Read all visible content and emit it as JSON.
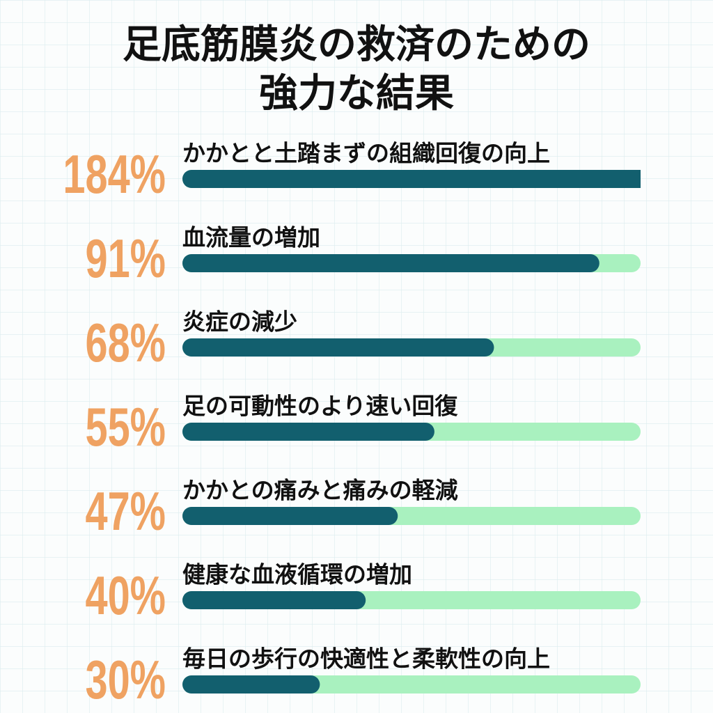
{
  "chart_data": {
    "type": "bar",
    "title": [
      "足底筋膜炎の救済のための",
      "強力な結果"
    ],
    "categories": [
      "かかとと土踏まずの組織回復の向上",
      "血流量の増加",
      "炎症の減少",
      "足の可動性のより速い回復",
      "かかとの痛みと痛みの軽減",
      "健康な血液循環の増加",
      "毎日の歩行の快適性と柔軟性の向上"
    ],
    "values": [
      184,
      91,
      68,
      55,
      47,
      40,
      30
    ],
    "value_labels": [
      "184%",
      "91%",
      "68%",
      "55%",
      "47%",
      "40%",
      "30%"
    ],
    "xlim": [
      0,
      100
    ],
    "color": "#125f6e",
    "track_color": "#a9f1bf",
    "label_color": "#efa262"
  }
}
